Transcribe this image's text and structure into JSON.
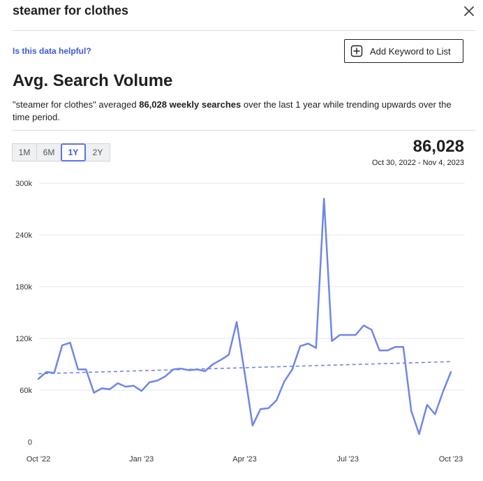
{
  "header": {
    "title": "steamer for clothes",
    "close_icon": "close-icon"
  },
  "helpful_link": "Is this data helpful?",
  "add_button": {
    "label": "Add Keyword to List",
    "icon": "plus-square-icon"
  },
  "section": {
    "title": "Avg. Search Volume",
    "summary_pre": "\"steamer for clothes\" averaged ",
    "summary_bold": "86,028 weekly searches",
    "summary_post": " over the last 1 year while trending upwards over the time period."
  },
  "ranges": [
    {
      "label": "1M",
      "active": false
    },
    {
      "label": "6M",
      "active": false
    },
    {
      "label": "1Y",
      "active": true
    },
    {
      "label": "2Y",
      "active": false
    }
  ],
  "stats": {
    "value": "86,028",
    "date_range": "Oct 30, 2022 - Nov 4, 2023"
  },
  "colors": {
    "line": "#6f86e8",
    "accent": "#3b5bdb"
  },
  "chart_data": {
    "type": "line",
    "y_ticks": [
      "0",
      "60k",
      "120k",
      "180k",
      "240k",
      "300k"
    ],
    "ylim": [
      0,
      300000
    ],
    "x_ticks": [
      {
        "label": "Oct '22",
        "index": 0
      },
      {
        "label": "Jan '23",
        "index": 13
      },
      {
        "label": "Apr '23",
        "index": 26
      },
      {
        "label": "Jul '23",
        "index": 39
      },
      {
        "label": "Oct '23",
        "index": 52
      }
    ],
    "series": [
      {
        "style": "solid",
        "values": [
          73000,
          81000,
          80000,
          112000,
          115000,
          84000,
          84000,
          57000,
          62000,
          61000,
          68000,
          64000,
          65000,
          59000,
          69000,
          71000,
          76000,
          84000,
          85000,
          83000,
          84000,
          82000,
          90000,
          95000,
          101000,
          139000,
          80000,
          19000,
          38000,
          39000,
          48000,
          70000,
          84000,
          111000,
          114000,
          109000,
          282000,
          117000,
          124000,
          124000,
          124000,
          135000,
          130000,
          106000,
          106000,
          110000,
          110000,
          36000,
          9000,
          43000,
          32000,
          58000,
          81000
        ]
      },
      {
        "style": "dashed",
        "values": [
          79000,
          93000
        ]
      }
    ],
    "grid": true,
    "legend": "none"
  }
}
